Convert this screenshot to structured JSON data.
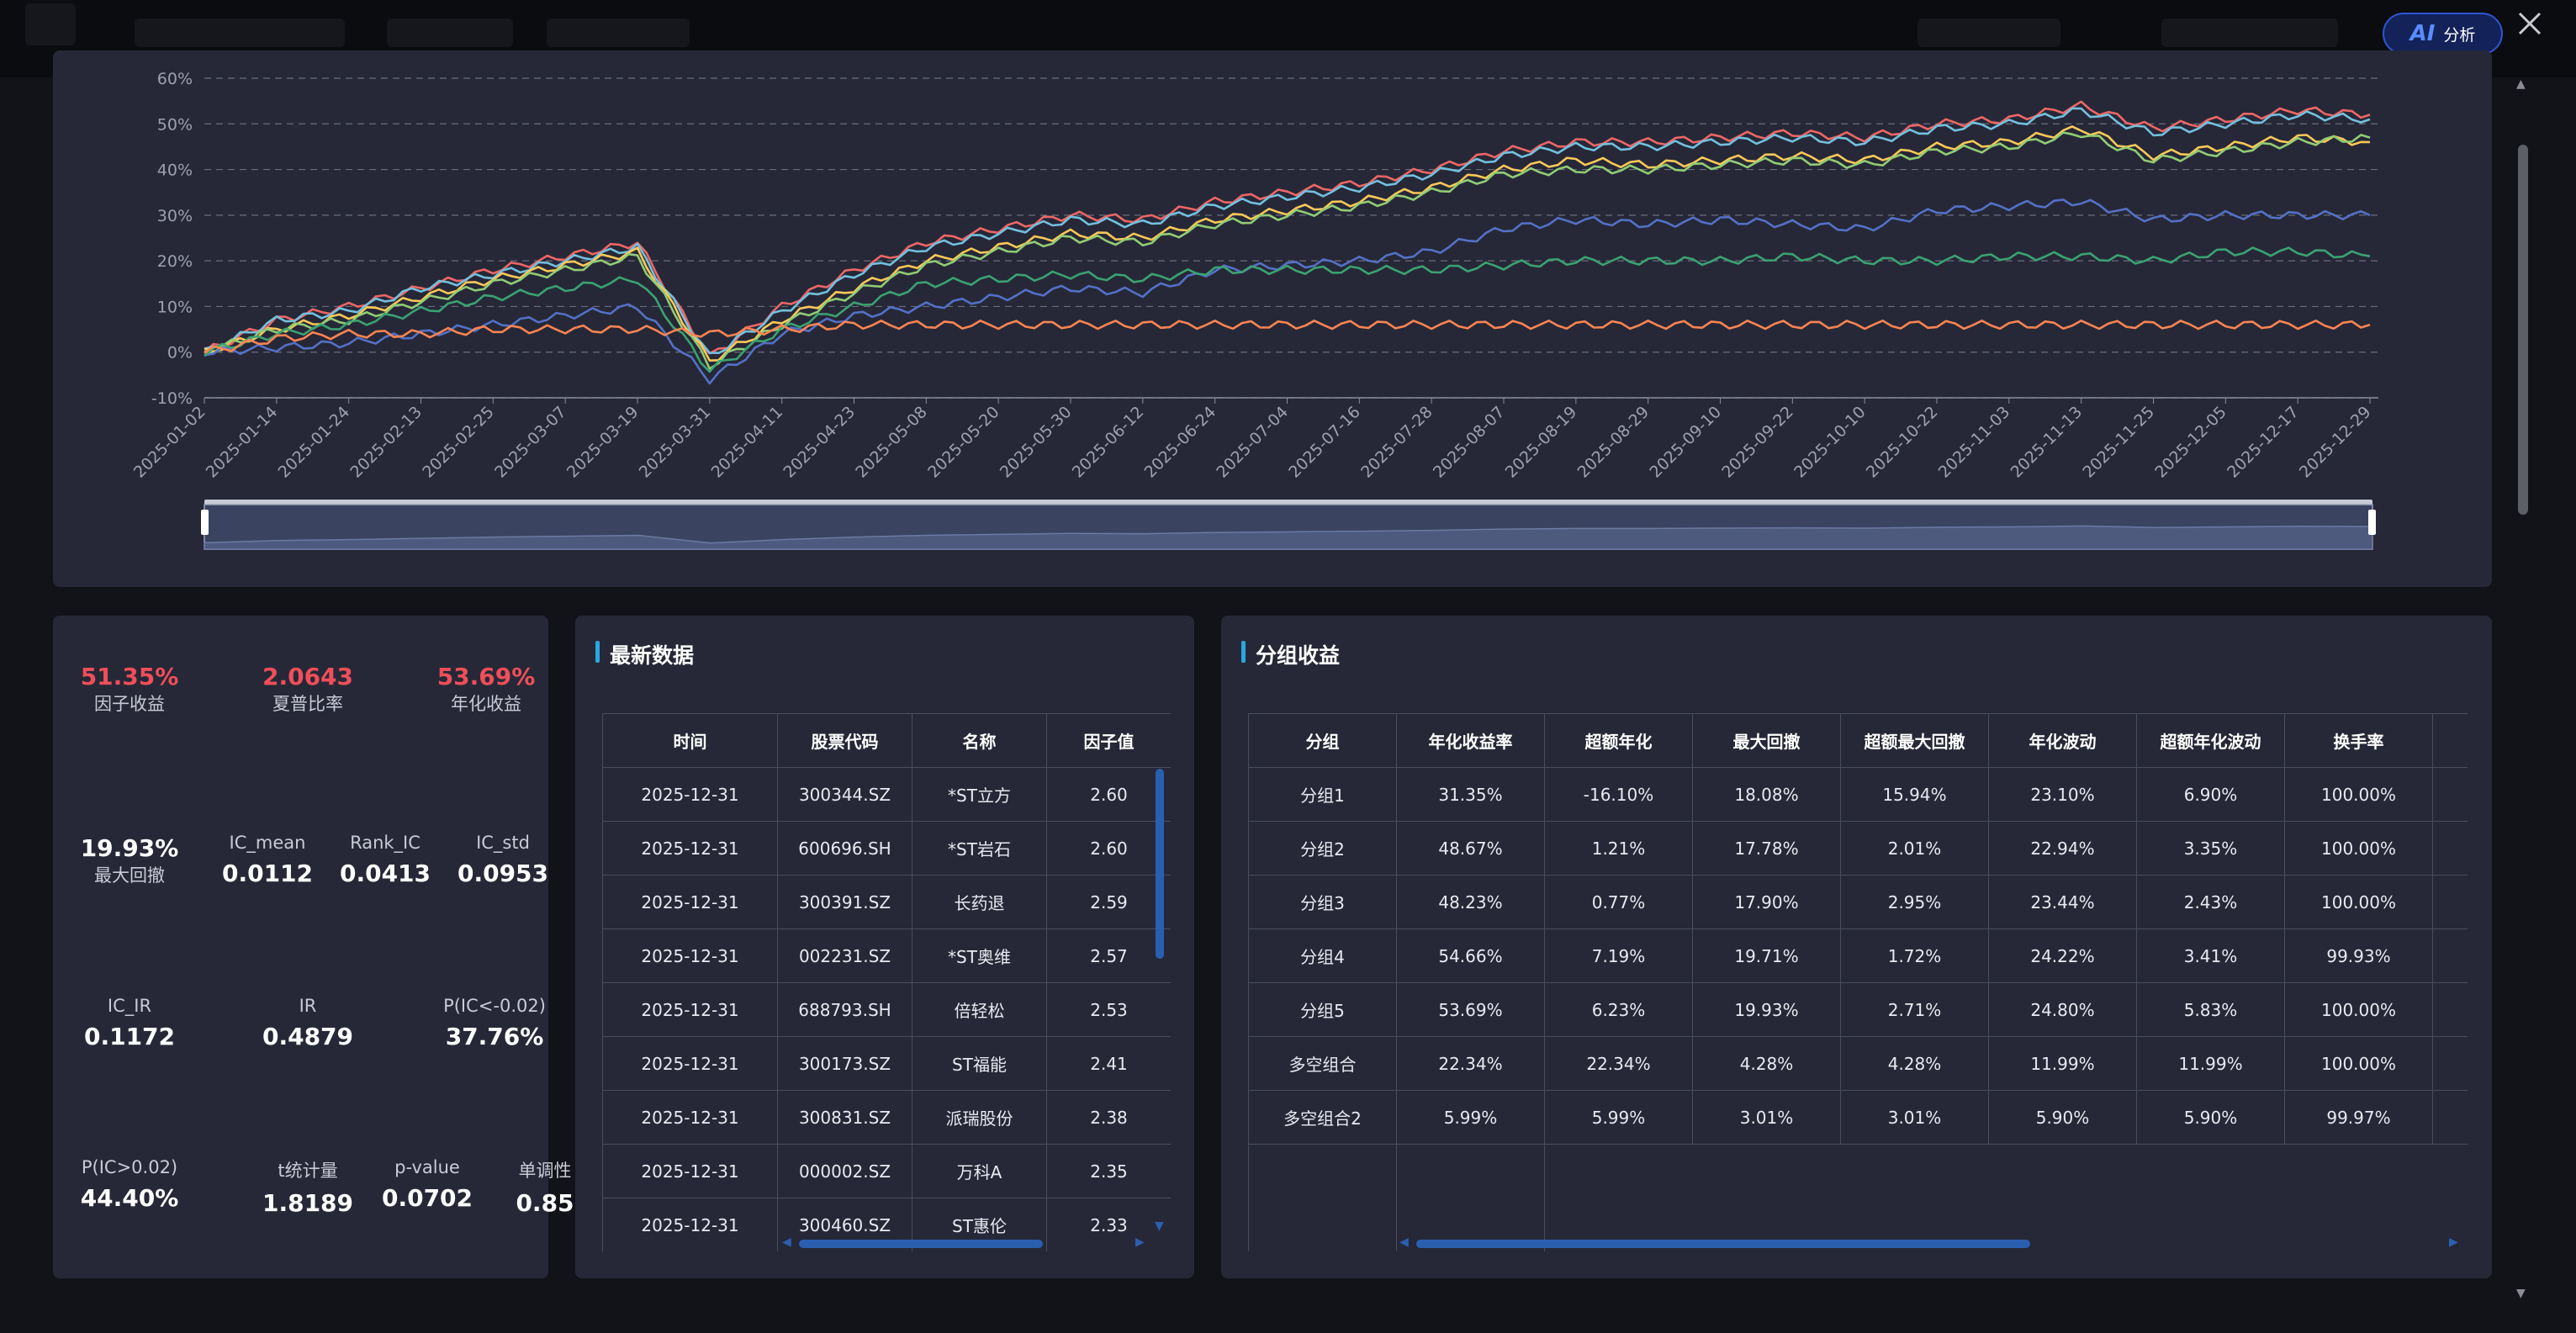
{
  "header": {
    "ai_button": {
      "badge": "AI",
      "label": "分析"
    }
  },
  "colors": {
    "red_accent": "#ef4e5a",
    "title_bar": "#2ca6e0",
    "series": [
      "#ee6666",
      "#73c0de",
      "#fac858",
      "#91cc75",
      "#5470c6",
      "#3ba272",
      "#fc8452"
    ]
  },
  "chart_data": {
    "type": "line",
    "ylim": [
      -10,
      60
    ],
    "y_ticks": [
      "-10%",
      "0%",
      "10%",
      "20%",
      "30%",
      "40%",
      "50%",
      "60%"
    ],
    "x": [
      "2025-01-02",
      "2025-01-14",
      "2025-01-24",
      "2025-02-13",
      "2025-02-25",
      "2025-03-07",
      "2025-03-19",
      "2025-03-31",
      "2025-04-11",
      "2025-04-23",
      "2025-05-08",
      "2025-05-20",
      "2025-05-30",
      "2025-06-12",
      "2025-06-24",
      "2025-07-04",
      "2025-07-16",
      "2025-07-28",
      "2025-08-07",
      "2025-08-19",
      "2025-08-29",
      "2025-09-10",
      "2025-09-22",
      "2025-10-10",
      "2025-10-22",
      "2025-11-03",
      "2025-11-13",
      "2025-11-25",
      "2025-12-05",
      "2025-12-17",
      "2025-12-29"
    ],
    "grid": true,
    "series": [
      {
        "color": "#ee6666",
        "values": [
          0,
          7,
          10,
          14,
          18,
          21,
          24,
          -1,
          10,
          18,
          24,
          27,
          30,
          29,
          33,
          35,
          37,
          40,
          44,
          46,
          46,
          47,
          48,
          47,
          50,
          51,
          54,
          49,
          51,
          53,
          52
        ]
      },
      {
        "color": "#73c0de",
        "values": [
          0,
          7,
          9,
          14,
          17,
          20,
          23,
          -1,
          9,
          17,
          23,
          26,
          29,
          28,
          32,
          34,
          36,
          39,
          43,
          45,
          45,
          46,
          47,
          46,
          49,
          50,
          53,
          48,
          50,
          52,
          51
        ]
      },
      {
        "color": "#fac858",
        "values": [
          0,
          5,
          8,
          12,
          16,
          19,
          22,
          -2,
          7,
          14,
          20,
          23,
          26,
          25,
          29,
          31,
          33,
          36,
          40,
          42,
          41,
          42,
          43,
          42,
          45,
          46,
          49,
          43,
          45,
          47,
          46
        ]
      },
      {
        "color": "#91cc75",
        "values": [
          0,
          5,
          7,
          11,
          15,
          18,
          21,
          -3,
          6,
          13,
          19,
          22,
          25,
          24,
          28,
          30,
          32,
          35,
          39,
          40,
          40,
          41,
          42,
          41,
          44,
          45,
          48,
          42,
          44,
          46,
          47
        ]
      },
      {
        "color": "#5470c6",
        "values": [
          0,
          1,
          2,
          4,
          6,
          8,
          10,
          -6,
          4,
          8,
          10,
          12,
          14,
          13,
          18,
          19,
          20,
          22,
          27,
          29,
          28,
          29,
          28,
          27,
          31,
          32,
          33,
          29,
          30,
          30,
          30
        ]
      },
      {
        "color": "#3ba272",
        "values": [
          0,
          4,
          6,
          9,
          12,
          14,
          16,
          -4,
          5,
          10,
          15,
          16,
          17,
          16,
          18,
          18,
          18,
          18,
          19,
          20,
          20,
          20,
          21,
          20,
          20,
          21,
          21,
          20,
          22,
          22,
          21
        ]
      },
      {
        "color": "#fc8452",
        "values": [
          0,
          3,
          4,
          4,
          5,
          5,
          5,
          4,
          5,
          6,
          6,
          6,
          6,
          6,
          6,
          6,
          6,
          6,
          6,
          6,
          6,
          6,
          6,
          6,
          6,
          6,
          6,
          6,
          6,
          6,
          6
        ]
      }
    ]
  },
  "metrics": [
    {
      "value": "51.35%",
      "label": "因子收益",
      "red": true
    },
    {
      "value": "2.0643",
      "label": "夏普比率",
      "red": true
    },
    {
      "value": "53.69%",
      "label": "年化收益",
      "red": true
    },
    {
      "value": "19.93%",
      "label": "最大回撤",
      "red": false
    },
    {
      "value": "0.0112",
      "label": "IC_mean",
      "red": false
    },
    {
      "value": "0.0413",
      "label": "Rank_IC",
      "red": false
    },
    {
      "value": "0.0953",
      "label": "IC_std",
      "red": false
    },
    {
      "value": "0.1172",
      "label": "IC_IR",
      "red": false
    },
    {
      "value": "0.4879",
      "label": "IR",
      "red": false
    },
    {
      "value": "37.76%",
      "label": "P(IC<-0.02)",
      "red": false
    },
    {
      "value": "44.40%",
      "label": "P(IC>0.02)",
      "red": false
    },
    {
      "value": "1.8189",
      "label": "t统计量",
      "red": false
    },
    {
      "value": "0.0702",
      "label": "p-value",
      "red": false
    },
    {
      "value": "0.85",
      "label": "单调性",
      "red": false
    }
  ],
  "latest": {
    "title": "最新数据",
    "headers": [
      "时间",
      "股票代码",
      "名称",
      "因子值"
    ],
    "rows": [
      [
        "2025-12-31",
        "300344.SZ",
        "*ST立方",
        "2.60"
      ],
      [
        "2025-12-31",
        "600696.SH",
        "*ST岩石",
        "2.60"
      ],
      [
        "2025-12-31",
        "300391.SZ",
        "长药退",
        "2.59"
      ],
      [
        "2025-12-31",
        "002231.SZ",
        "*ST奥维",
        "2.57"
      ],
      [
        "2025-12-31",
        "688793.SH",
        "倍轻松",
        "2.53"
      ],
      [
        "2025-12-31",
        "300173.SZ",
        "ST福能",
        "2.41"
      ],
      [
        "2025-12-31",
        "300831.SZ",
        "派瑞股份",
        "2.38"
      ],
      [
        "2025-12-31",
        "000002.SZ",
        "万科A",
        "2.35"
      ],
      [
        "2025-12-31",
        "300460.SZ",
        "ST惠伦",
        "2.33"
      ]
    ]
  },
  "groups": {
    "title": "分组收益",
    "headers": [
      "分组",
      "年化收益率",
      "超额年化",
      "最大回撤",
      "超额最大回撤",
      "年化波动",
      "超额年化波动",
      "换手率"
    ],
    "rows": [
      [
        "分组1",
        "31.35%",
        "-16.10%",
        "18.08%",
        "15.94%",
        "23.10%",
        "6.90%",
        "100.00%"
      ],
      [
        "分组2",
        "48.67%",
        "1.21%",
        "17.78%",
        "2.01%",
        "22.94%",
        "3.35%",
        "100.00%"
      ],
      [
        "分组3",
        "48.23%",
        "0.77%",
        "17.90%",
        "2.95%",
        "23.44%",
        "2.43%",
        "100.00%"
      ],
      [
        "分组4",
        "54.66%",
        "7.19%",
        "19.71%",
        "1.72%",
        "24.22%",
        "3.41%",
        "99.93%"
      ],
      [
        "分组5",
        "53.69%",
        "6.23%",
        "19.93%",
        "2.71%",
        "24.80%",
        "5.83%",
        "100.00%"
      ],
      [
        "多空组合",
        "22.34%",
        "22.34%",
        "4.28%",
        "4.28%",
        "11.99%",
        "11.99%",
        "100.00%"
      ],
      [
        "多空组合2",
        "5.99%",
        "5.99%",
        "3.01%",
        "3.01%",
        "5.90%",
        "5.90%",
        "99.97%"
      ]
    ]
  }
}
